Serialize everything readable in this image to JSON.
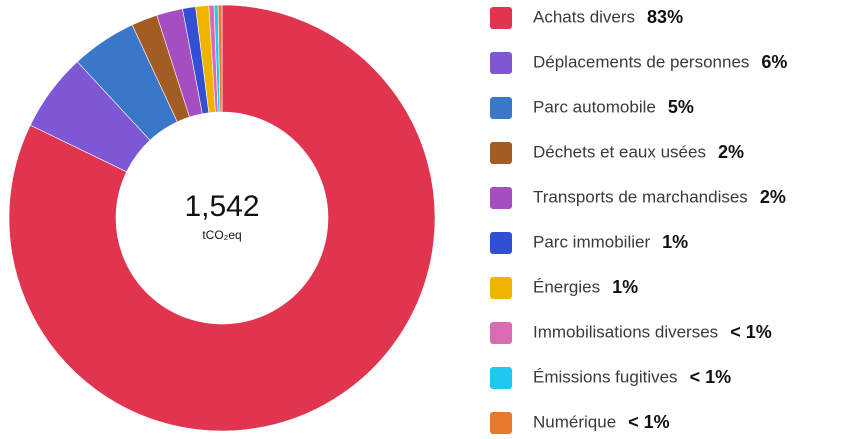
{
  "chart_data": {
    "type": "donut",
    "center_label": "1,542",
    "center_unit": "tCO₂eq",
    "categories": [
      "Achats divers",
      "Déplacements de personnes",
      "Parc automobile",
      "Déchets et eaux usées",
      "Transports de marchandises",
      "Parc immobilier",
      "Énergies",
      "Immobilisations diverses",
      "Émissions fugitives",
      "Numérique"
    ],
    "values": [
      83,
      6,
      5,
      2,
      2,
      1,
      1,
      0.4,
      0.3,
      0.3
    ],
    "value_labels": [
      "83%",
      "6%",
      "5%",
      "2%",
      "2%",
      "1%",
      "1%",
      "< 1%",
      "< 1%",
      "< 1%"
    ],
    "colors": [
      "#e0344f",
      "#7e57d4",
      "#3a77c8",
      "#a35d24",
      "#a64dbf",
      "#3350d4",
      "#f0b400",
      "#d96bb3",
      "#1ec8ef",
      "#e8792a"
    ]
  }
}
